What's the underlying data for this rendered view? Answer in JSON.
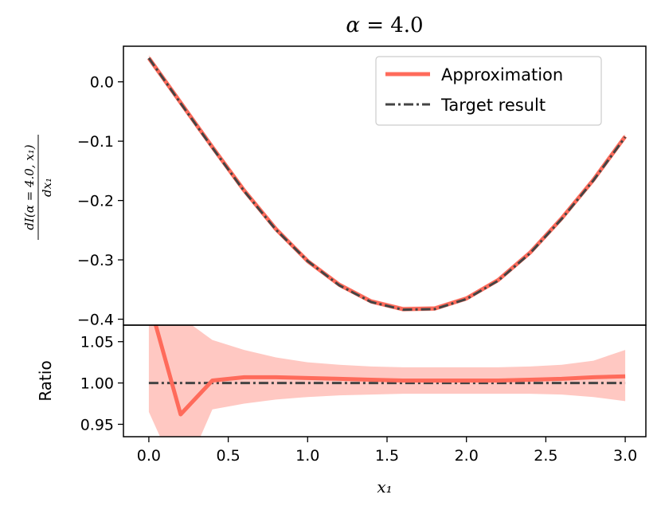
{
  "chart_data": {
    "type": "line",
    "title": "α = 4.0",
    "x": [
      0.0,
      0.2,
      0.4,
      0.6,
      0.8,
      1.0,
      1.2,
      1.4,
      1.6,
      1.8,
      2.0,
      2.2,
      2.4,
      2.6,
      2.8,
      3.0
    ],
    "top_panel": {
      "ylabel": "dI(α = 4.0, x₁)/dx₁",
      "ylim": [
        -0.41,
        0.06
      ],
      "yticks": [
        0.0,
        -0.1,
        -0.2,
        -0.3,
        -0.4
      ],
      "ytick_labels": [
        "0.0",
        "−0.1",
        "−0.2",
        "−0.3",
        "−0.4"
      ],
      "series": [
        {
          "name": "Approximation",
          "color": "#ff6b5b",
          "style": "solid",
          "values": [
            0.04,
            -0.035,
            -0.11,
            -0.183,
            -0.248,
            -0.302,
            -0.342,
            -0.37,
            -0.383,
            -0.382,
            -0.365,
            -0.334,
            -0.288,
            -0.23,
            -0.165,
            -0.092
          ],
          "band_lower": [
            0.035,
            -0.04,
            -0.115,
            -0.188,
            -0.253,
            -0.306,
            -0.346,
            -0.374,
            -0.387,
            -0.386,
            -0.369,
            -0.338,
            -0.292,
            -0.234,
            -0.169,
            -0.096
          ],
          "band_upper": [
            0.045,
            -0.03,
            -0.105,
            -0.178,
            -0.243,
            -0.298,
            -0.338,
            -0.366,
            -0.379,
            -0.378,
            -0.361,
            -0.33,
            -0.284,
            -0.226,
            -0.161,
            -0.088
          ],
          "band_color": "#ffc8c2"
        },
        {
          "name": "Target result",
          "color": "#444444",
          "style": "dashdot",
          "values": [
            0.04,
            -0.036,
            -0.111,
            -0.184,
            -0.249,
            -0.302,
            -0.343,
            -0.371,
            -0.384,
            -0.383,
            -0.366,
            -0.335,
            -0.289,
            -0.231,
            -0.166,
            -0.093
          ]
        }
      ],
      "legend": "top-right"
    },
    "bottom_panel": {
      "ylabel": "Ratio",
      "ylim": [
        0.935,
        1.07
      ],
      "yticks": [
        0.95,
        1.0,
        1.05
      ],
      "ytick_labels": [
        "0.95",
        "1.00",
        "1.05"
      ],
      "ratio_values": [
        1.1,
        0.962,
        1.003,
        1.007,
        1.007,
        1.006,
        1.005,
        1.004,
        1.003,
        1.003,
        1.003,
        1.003,
        1.004,
        1.005,
        1.007,
        1.008
      ],
      "band_lower": [
        0.965,
        0.88,
        0.968,
        0.975,
        0.98,
        0.983,
        0.985,
        0.986,
        0.987,
        0.987,
        0.987,
        0.987,
        0.987,
        0.986,
        0.983,
        0.978
      ],
      "band_upper": [
        1.15,
        1.08,
        1.052,
        1.04,
        1.031,
        1.025,
        1.022,
        1.02,
        1.019,
        1.019,
        1.019,
        1.019,
        1.02,
        1.022,
        1.027,
        1.04
      ],
      "reference": 1.0
    },
    "xlabel": "x₁",
    "xlim": [
      -0.16,
      3.13
    ],
    "xticks": [
      0.0,
      0.5,
      1.0,
      1.5,
      2.0,
      2.5,
      3.0
    ],
    "xtick_labels": [
      "0.0",
      "0.5",
      "1.0",
      "1.5",
      "2.0",
      "2.5",
      "3.0"
    ]
  }
}
